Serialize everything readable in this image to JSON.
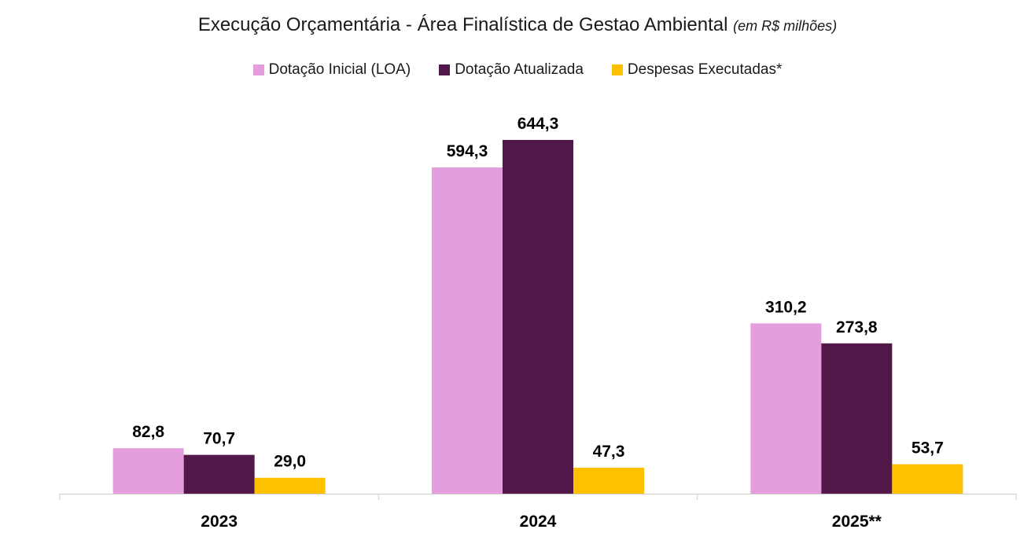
{
  "chart_data": {
    "type": "bar",
    "title": "Execução Orçamentária - Área Finalística de Gestao Ambiental",
    "title_unit": "(em R$ milhões)",
    "categories": [
      "2023",
      "2024",
      "2025**"
    ],
    "series": [
      {
        "name": "Dotação Inicial (LOA)",
        "color": "#E59EDD",
        "values": [
          82.8,
          594.3,
          310.2
        ],
        "labels": [
          "82,8",
          "594,3",
          "310,2"
        ]
      },
      {
        "name": "Dotação Atualizada",
        "color": "#521849",
        "values": [
          70.7,
          644.3,
          273.8
        ],
        "labels": [
          "70,7",
          "644,3",
          "273,8"
        ]
      },
      {
        "name": "Despesas Executadas*",
        "color": "#FFC000",
        "values": [
          29.0,
          47.3,
          53.7
        ],
        "labels": [
          "29,0",
          "47,3",
          "53,7"
        ]
      }
    ],
    "xlabel": "",
    "ylabel": "",
    "ylim": [
      0,
      700
    ],
    "grid": false,
    "legend": "top-center"
  }
}
